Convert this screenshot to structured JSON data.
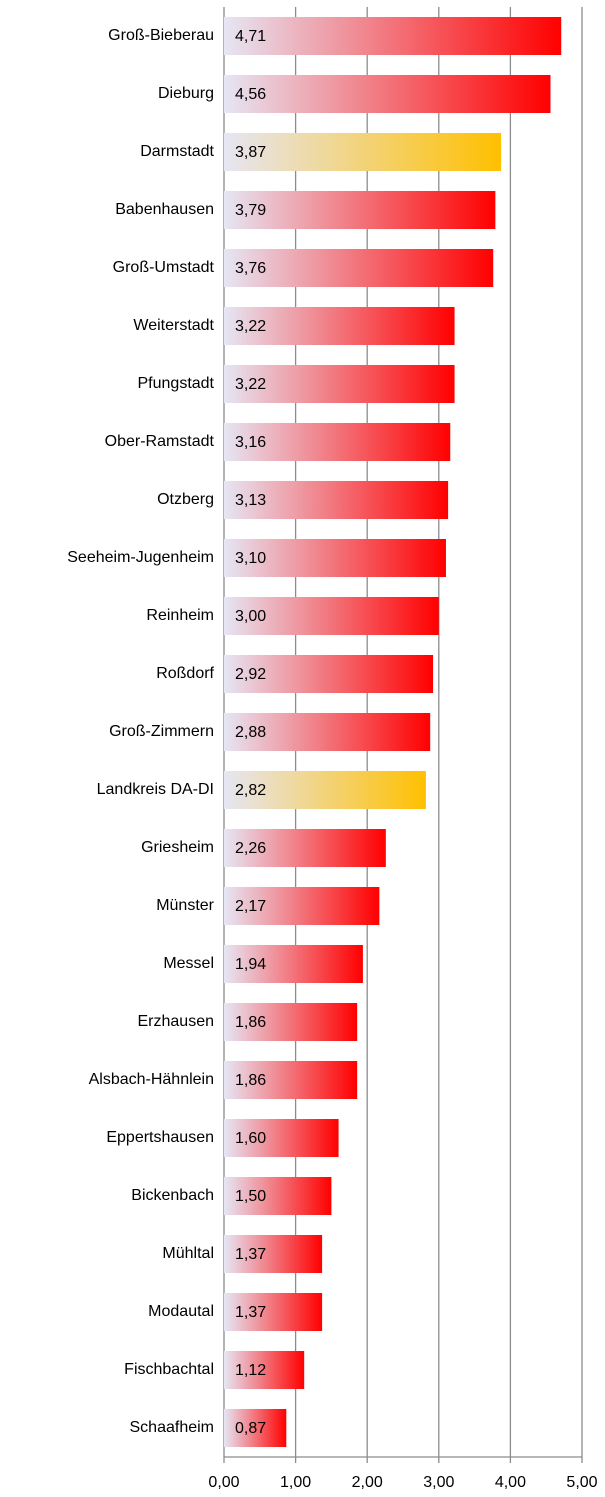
{
  "chart_data": {
    "type": "bar",
    "orientation": "horizontal",
    "categories": [
      "Groß-Bieberau",
      "Dieburg",
      "Darmstadt",
      "Babenhausen",
      "Groß-Umstadt",
      "Weiterstadt",
      "Pfungstadt",
      "Ober-Ramstadt",
      "Otzberg",
      "Seeheim-Jugenheim",
      "Reinheim",
      "Roßdorf",
      "Groß-Zimmern",
      "Landkreis DA-DI",
      "Griesheim",
      "Münster",
      "Messel",
      "Erzhausen",
      "Alsbach-Hähnlein",
      "Eppertshausen",
      "Bickenbach",
      "Mühltal",
      "Modautal",
      "Fischbachtal",
      "Schaafheim"
    ],
    "values": [
      4.71,
      4.56,
      3.87,
      3.79,
      3.76,
      3.22,
      3.22,
      3.16,
      3.13,
      3.1,
      3.0,
      2.92,
      2.88,
      2.82,
      2.26,
      2.17,
      1.94,
      1.86,
      1.86,
      1.6,
      1.5,
      1.37,
      1.37,
      1.12,
      0.87
    ],
    "value_labels": [
      "4,71",
      "4,56",
      "3,87",
      "3,79",
      "3,76",
      "3,22",
      "3,22",
      "3,16",
      "3,13",
      "3,10",
      "3,00",
      "2,92",
      "2,88",
      "2,82",
      "2,26",
      "2,17",
      "1,94",
      "1,86",
      "1,86",
      "1,60",
      "1,50",
      "1,37",
      "1,37",
      "1,12",
      "0,87"
    ],
    "colors": [
      "#ff0000",
      "#ff0000",
      "#ffc000",
      "#ff0000",
      "#ff0000",
      "#ff0000",
      "#ff0000",
      "#ff0000",
      "#ff0000",
      "#ff0000",
      "#ff0000",
      "#ff0000",
      "#ff0000",
      "#ffc000",
      "#ff0000",
      "#ff0000",
      "#ff0000",
      "#ff0000",
      "#ff0000",
      "#ff0000",
      "#ff0000",
      "#ff0000",
      "#ff0000",
      "#ff0000",
      "#ff0000"
    ],
    "gradient_start_color": "#e6e6f4",
    "xlim": [
      0,
      5
    ],
    "xticks": [
      {
        "value": 0,
        "label": "0,00"
      },
      {
        "value": 1,
        "label": "1,00"
      },
      {
        "value": 2,
        "label": "2,00"
      },
      {
        "value": 3,
        "label": "3,00"
      },
      {
        "value": 4,
        "label": "4,00"
      },
      {
        "value": 5,
        "label": "5,00"
      }
    ],
    "grid": true
  }
}
